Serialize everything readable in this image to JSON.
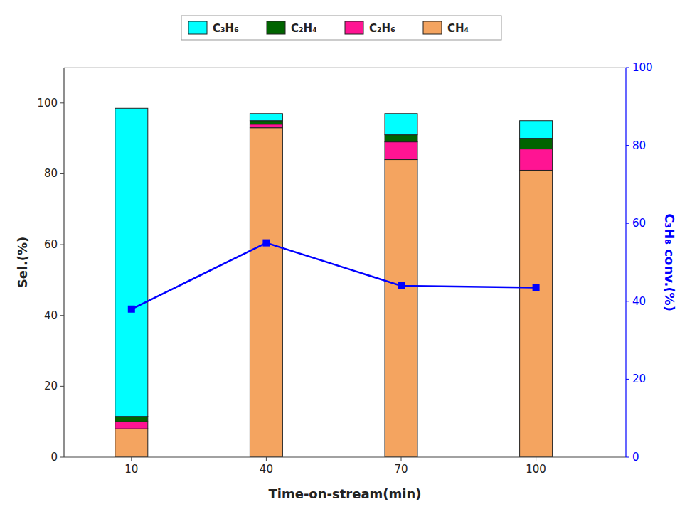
{
  "chart_data": {
    "type": "bar",
    "stacked": true,
    "xlabel": "Time-on-stream(min)",
    "ylabel": "Sel.(%)",
    "y2label": "C₃H₈ conv.(%)",
    "x": [
      10,
      40,
      70,
      100
    ],
    "xlim": [
      -5,
      120
    ],
    "xticks": [
      10,
      40,
      70,
      100
    ],
    "ylim": [
      0,
      110
    ],
    "yticks": [
      0,
      20,
      40,
      60,
      80,
      100
    ],
    "y2lim": [
      0,
      100
    ],
    "y2ticks": [
      0,
      20,
      40,
      60,
      80,
      100
    ],
    "grid": false,
    "legend": "top",
    "series": [
      {
        "name": "CH₄",
        "color": "#F4A460",
        "values": [
          8.0,
          93.0,
          84.0,
          81.0
        ]
      },
      {
        "name": "C₂H₆",
        "color": "#FF1493",
        "values": [
          2.0,
          1.0,
          5.0,
          6.0
        ]
      },
      {
        "name": "C₂H₄",
        "color": "#006400",
        "values": [
          1.5,
          1.0,
          2.0,
          3.0
        ]
      },
      {
        "name": "C₃H₆",
        "color": "#00FFFF",
        "values": [
          87.0,
          2.0,
          6.0,
          5.0
        ]
      },
      {
        "type": "line",
        "axis": "y2",
        "marker": "square",
        "color": "#0000FF",
        "values": [
          38.0,
          55.0,
          44.0,
          43.5
        ]
      }
    ]
  }
}
